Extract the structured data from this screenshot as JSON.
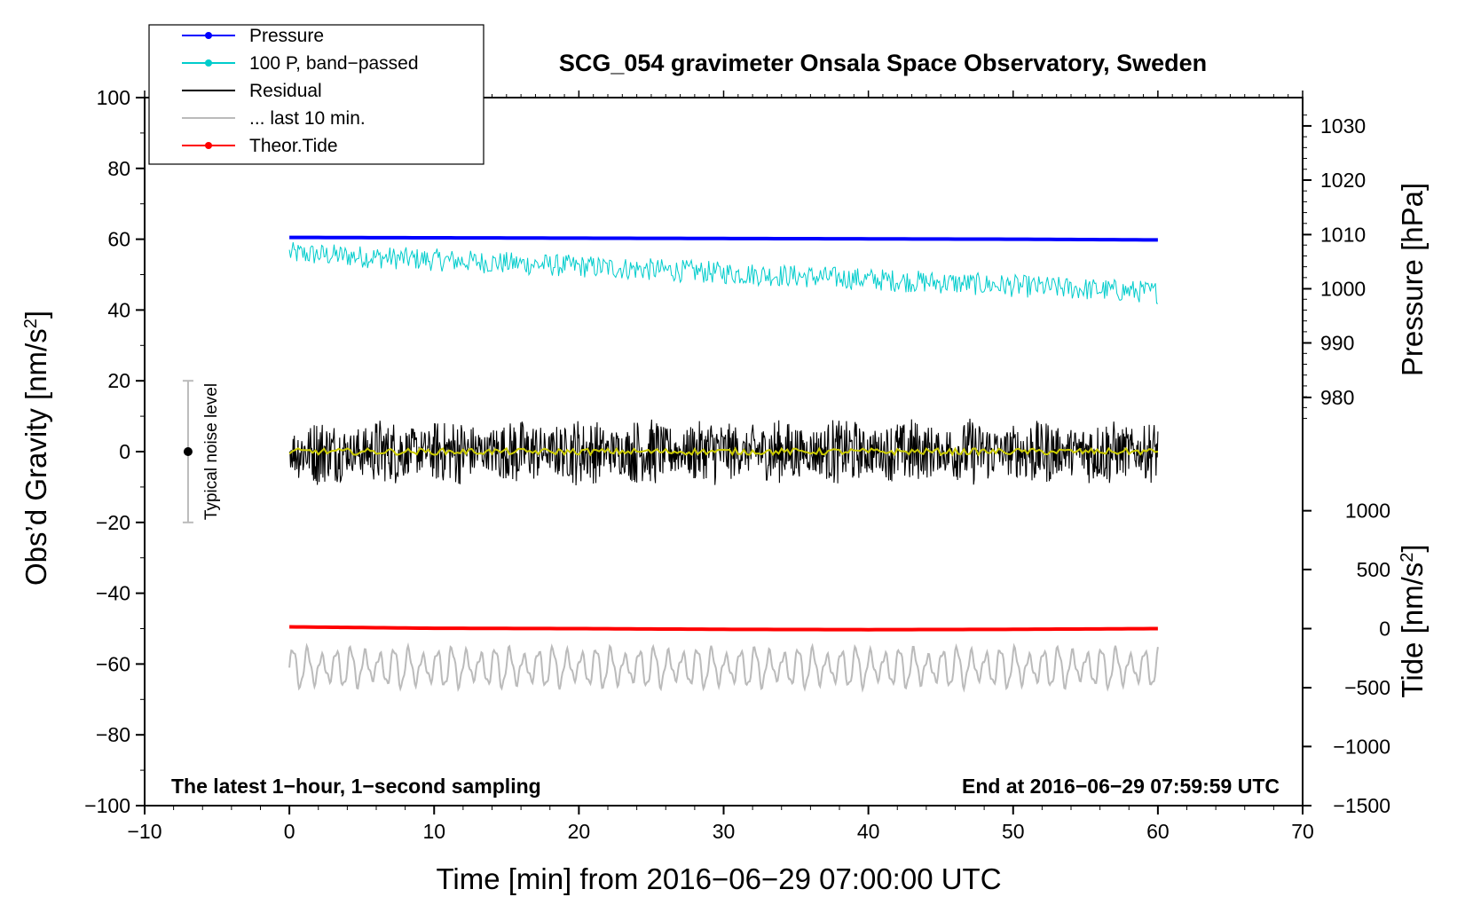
{
  "chart_data": {
    "type": "line",
    "title": "SCG_054 gravimeter Onsala Space Observatory, Sweden",
    "xlabel": "Time [min] from 2016−06−29 07:00:00 UTC",
    "ylabel_left": "Obs’d Gravity [nm/s",
    "ylabel_left_sup": "2",
    "ylabel_left_end": "]",
    "ylabel_right_pressure": "Pressure [hPa]",
    "ylabel_right_tide": "Tide [nm/s",
    "ylabel_right_tide_sup": "2",
    "ylabel_right_tide_end": "]",
    "xlim": [
      -10,
      70
    ],
    "ylim": [
      -100,
      100
    ],
    "x_ticks": [
      "−10",
      "0",
      "10",
      "20",
      "30",
      "40",
      "50",
      "60",
      "70"
    ],
    "x_tick_values": [
      -10,
      0,
      10,
      20,
      30,
      40,
      50,
      60,
      70
    ],
    "y_ticks": [
      "100",
      "80",
      "60",
      "40",
      "20",
      "0",
      "−20",
      "−40",
      "−60",
      "−80",
      "−100"
    ],
    "y_tick_values": [
      100,
      80,
      60,
      40,
      20,
      0,
      -20,
      -40,
      -60,
      -80,
      -100
    ],
    "pressure_axis": {
      "ticks": [
        "1030",
        "1020",
        "1010",
        "1000",
        "990",
        "980"
      ],
      "tick_values": [
        1030,
        1020,
        1010,
        1000,
        990,
        980
      ],
      "gravity_equivalent": [
        92,
        76.7,
        61.3,
        46,
        30.7,
        15.3
      ]
    },
    "tide_axis": {
      "ticks": [
        "1000",
        "500",
        "0",
        "−500",
        "−1000",
        "−1500"
      ],
      "tick_values": [
        1000,
        500,
        0,
        -500,
        -1000,
        -1500
      ],
      "gravity_equivalent": [
        -16.7,
        -33.3,
        -50,
        -66.7,
        -83.3,
        -100
      ]
    },
    "series": [
      {
        "name": "Pressure",
        "color": "#0000ff",
        "style": "thick-line",
        "x": [
          0,
          10,
          20,
          30,
          40,
          50,
          60
        ],
        "y": [
          60.5,
          60.4,
          60.3,
          60.2,
          60.1,
          60.0,
          59.8
        ]
      },
      {
        "name": "100 P, band−passed",
        "color": "#00cccc",
        "style": "noisy",
        "x": [
          0,
          60
        ],
        "y": [
          56,
          45
        ],
        "amplitude": 3.2
      },
      {
        "name": "Residual",
        "color": "#000000",
        "style": "noisy",
        "x": [
          0,
          60
        ],
        "y": [
          0,
          0
        ],
        "amplitude": 7
      },
      {
        "name": "... last 10 min.",
        "color": "#bbbbbb",
        "style": "wave",
        "x": [
          0,
          60
        ],
        "y": [
          -61,
          -61
        ],
        "amplitude": 5.5
      },
      {
        "name": "Theor.Tide",
        "color": "#ff0000",
        "style": "thick-line",
        "x": [
          0,
          10,
          20,
          30,
          40,
          50,
          60
        ],
        "y": [
          -49.5,
          -49.9,
          -50.0,
          -50.2,
          -50.3,
          -50.2,
          -50.0
        ]
      },
      {
        "name": "smoothed",
        "color": "#cccc00",
        "style": "noisy",
        "x": [
          0,
          60
        ],
        "y": [
          0,
          0
        ],
        "amplitude": 0.9
      }
    ],
    "legend": [
      {
        "label": "Pressure",
        "color": "#0000ff",
        "marker": true
      },
      {
        "label": "100 P, band−passed",
        "color": "#00cccc",
        "marker": true
      },
      {
        "label": "Residual",
        "color": "#000000",
        "marker": false
      },
      {
        "label": "... last 10 min.",
        "color": "#bbbbbb",
        "marker": false
      },
      {
        "label": "Theor.Tide",
        "color": "#ff0000",
        "marker": true
      }
    ],
    "noise_bar": {
      "label": "Typical noise level",
      "x": -7,
      "y_low": -20,
      "y_high": 20,
      "center": 0
    },
    "footer_left": "The latest 1−hour, 1−second sampling",
    "footer_right": "End at 2016−06−29 07:59:59 UTC"
  }
}
